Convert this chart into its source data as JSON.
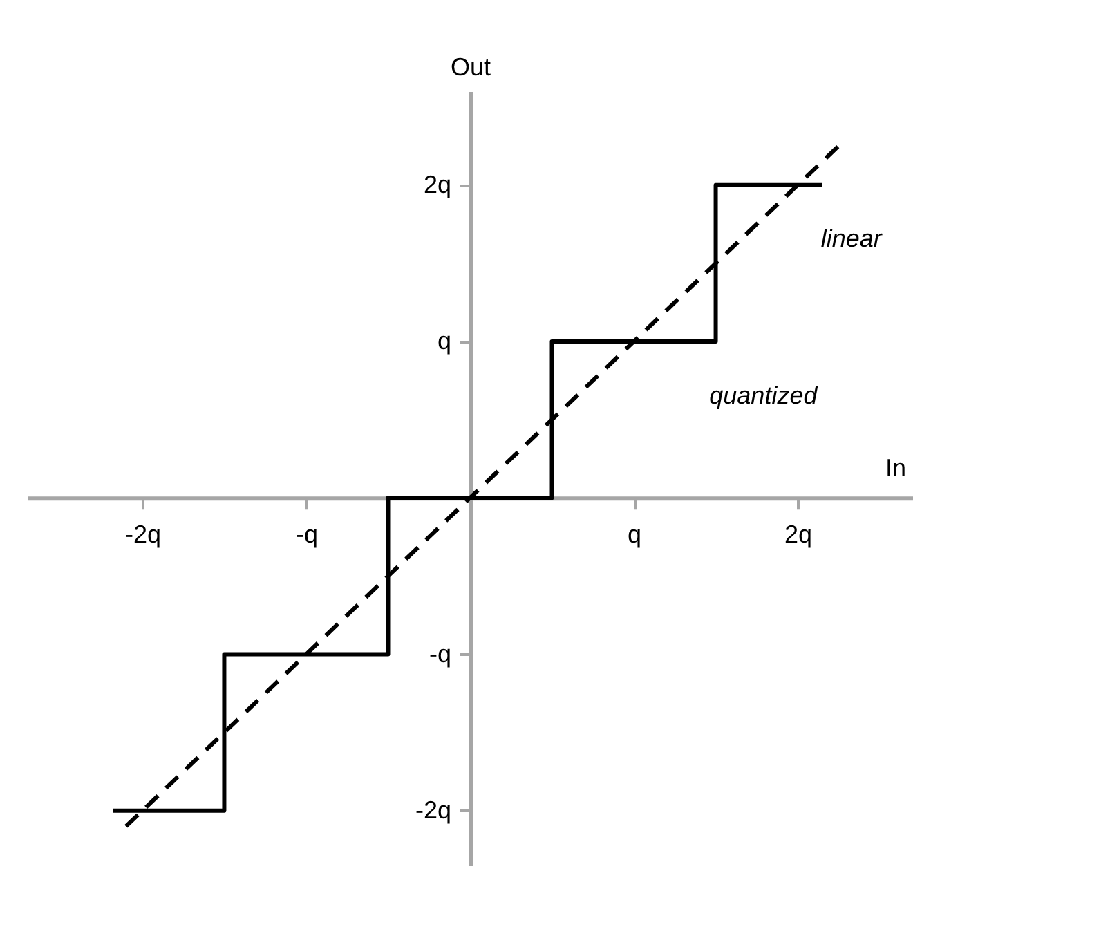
{
  "chart_data": {
    "type": "line",
    "xlabel": "In",
    "ylabel": "Out",
    "xlim": [
      -2.7,
      2.7
    ],
    "ylim": [
      -2.35,
      2.6
    ],
    "xticks": [
      {
        "value": -2,
        "label": "-2q"
      },
      {
        "value": -1,
        "label": "-q"
      },
      {
        "value": 1,
        "label": "q"
      },
      {
        "value": 2,
        "label": "2q"
      }
    ],
    "yticks": [
      {
        "value": -2,
        "label": "-2q"
      },
      {
        "value": -1,
        "label": "-q"
      },
      {
        "value": 1,
        "label": "q"
      },
      {
        "value": 2,
        "label": "2q"
      }
    ],
    "series": [
      {
        "type": "step",
        "color": "#000000",
        "line_style": "solid",
        "x": [
          -2.18,
          -1.5,
          -0.5,
          0.5,
          1.5,
          2.15
        ],
        "values": [
          -2,
          -1,
          0,
          1,
          2,
          2
        ]
      },
      {
        "type": "line",
        "color": "#000000",
        "line_style": "dashed",
        "x": [
          -2.1,
          2.25
        ],
        "values": [
          -2.1,
          2.25
        ]
      }
    ],
    "annotations": [
      {
        "text": "linear",
        "x": 1.72,
        "y": 1.72
      },
      {
        "text": "quantized",
        "x": 1.25,
        "y": 1
      }
    ],
    "grid": false
  }
}
